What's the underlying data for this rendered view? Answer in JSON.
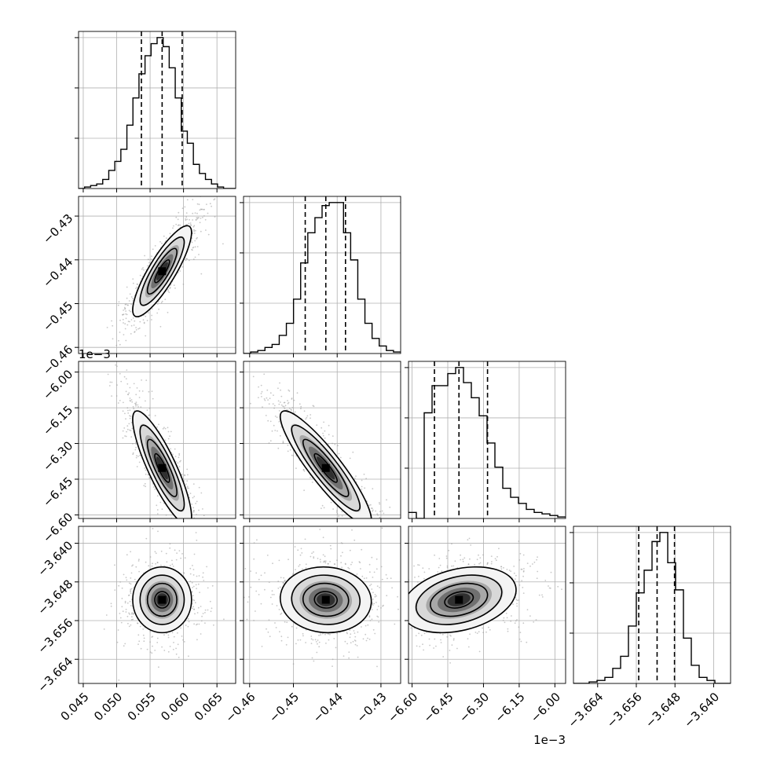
{
  "figure": {
    "type": "corner-plot"
  },
  "chart_data": {
    "type": "corner",
    "parameters": [
      {
        "index": 0,
        "range": [
          0.0443,
          0.0678
        ],
        "ticks": [
          0.045,
          0.05,
          0.055,
          0.06,
          0.065
        ],
        "tick_labels": [
          "0.045",
          "0.050",
          "0.055",
          "0.060",
          "0.065"
        ],
        "offset_label": "",
        "quantiles": [
          0.0537,
          0.0568,
          0.0598
        ],
        "histogram": {
          "bin_edges_range": [
            0.0443,
            0.0678
          ],
          "counts": [
            0,
            0.01,
            0.02,
            0.03,
            0.06,
            0.12,
            0.18,
            0.26,
            0.42,
            0.6,
            0.76,
            0.88,
            0.96,
            1.0,
            0.94,
            0.8,
            0.6,
            0.38,
            0.3,
            0.16,
            0.1,
            0.06,
            0.03,
            0.01,
            0,
            0
          ],
          "ylim": [
            0,
            1.02
          ]
        }
      },
      {
        "index": 1,
        "range": [
          -0.4614,
          -0.4255
        ],
        "ticks": [
          -0.46,
          -0.45,
          -0.44,
          -0.43
        ],
        "tick_labels": [
          "−0.46",
          "−0.45",
          "−0.44",
          "−0.43"
        ],
        "offset_label": "",
        "quantiles": [
          -0.4473,
          -0.4426,
          -0.4381
        ],
        "histogram": {
          "counts": [
            0,
            0.01,
            0.02,
            0.04,
            0.06,
            0.12,
            0.2,
            0.36,
            0.6,
            0.8,
            0.9,
            0.98,
            1.0,
            1.0,
            0.8,
            0.62,
            0.36,
            0.2,
            0.1,
            0.05,
            0.02,
            0.01
          ],
          "ylim": [
            0,
            1.02
          ]
        }
      },
      {
        "index": 2,
        "range": [
          -6.615,
          -5.955
        ],
        "ticks": [
          -6.6,
          -6.45,
          -6.3,
          -6.15,
          -6.0
        ],
        "tick_labels": [
          "−6.60",
          "−6.45",
          "−6.30",
          "−6.15",
          "−6.00"
        ],
        "offset_label": "1e−3",
        "quantiles": [
          -6.506,
          -6.403,
          -6.283
        ],
        "histogram": {
          "counts": [
            0.04,
            0.0,
            0.7,
            0.88,
            0.88,
            0.96,
            1.0,
            0.9,
            0.8,
            0.68,
            0.5,
            0.34,
            0.2,
            0.14,
            0.1,
            0.06,
            0.04,
            0.03,
            0.02,
            0.01
          ],
          "ylim": [
            0,
            1.02
          ]
        }
      },
      {
        "index": 3,
        "range": [
          -3.669,
          -3.6365
        ],
        "ticks": [
          -3.664,
          -3.656,
          -3.648,
          -3.64
        ],
        "tick_labels": [
          "−3.664",
          "−3.656",
          "−3.648",
          "−3.640"
        ],
        "offset_label": "",
        "quantiles": [
          -3.6555,
          -3.6517,
          -3.6481
        ],
        "histogram": {
          "counts": [
            0,
            0.0,
            0.01,
            0.02,
            0.04,
            0.1,
            0.18,
            0.38,
            0.6,
            0.75,
            0.94,
            1.0,
            0.8,
            0.62,
            0.3,
            0.12,
            0.04,
            0.02,
            0.0,
            0
          ],
          "ylim": [
            0,
            1.02
          ]
        }
      }
    ],
    "row_offset_labels": [
      {
        "row": 1,
        "text": "1e−3"
      }
    ],
    "pairs": [
      {
        "x": 0,
        "y": 1,
        "mean": [
          0.0568,
          -0.4426
        ],
        "sd": [
          0.0022,
          0.0052
        ],
        "corr": 0.85
      },
      {
        "x": 0,
        "y": 2,
        "mean": [
          0.0568,
          -6.403
        ],
        "sd": [
          0.0022,
          0.12
        ],
        "corr": -0.85
      },
      {
        "x": 1,
        "y": 2,
        "mean": [
          -0.4426,
          -6.403
        ],
        "sd": [
          0.0052,
          0.12
        ],
        "corr": -0.9
      },
      {
        "x": 0,
        "y": 3,
        "mean": [
          0.0568,
          -3.6517
        ],
        "sd": [
          0.0022,
          0.0034
        ],
        "corr": 0.0
      },
      {
        "x": 1,
        "y": 3,
        "mean": [
          -0.4426,
          -3.6517
        ],
        "sd": [
          0.0052,
          0.0034
        ],
        "corr": -0.05
      },
      {
        "x": 2,
        "y": 3,
        "mean": [
          -6.403,
          -3.6517
        ],
        "sd": [
          0.12,
          0.0034
        ],
        "corr": 0.3
      }
    ],
    "contour_levels": [
      0.5,
      1.0,
      1.5,
      2.0
    ],
    "grid": true,
    "colors": {
      "line": "#000000",
      "grid": "#b0b0b0",
      "scatter": "#9a9a9a"
    }
  }
}
